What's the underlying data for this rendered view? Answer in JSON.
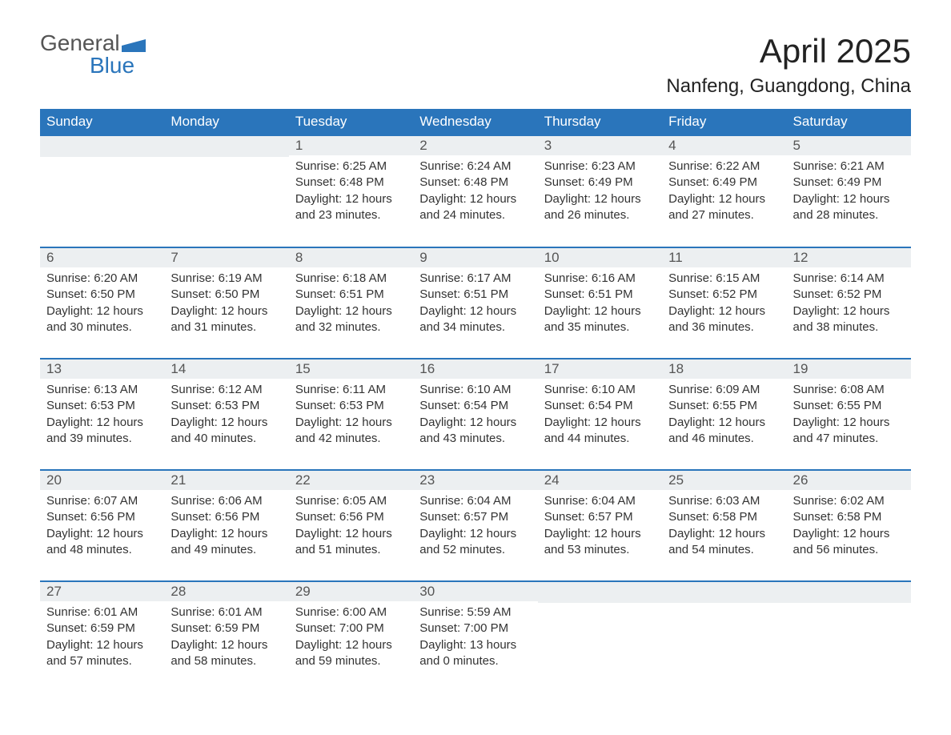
{
  "logo": {
    "word1": "General",
    "word2": "Blue"
  },
  "title": "April 2025",
  "location": "Nanfeng, Guangdong, China",
  "colors": {
    "accent": "#2a75bb",
    "row_bg": "#eceff1"
  },
  "weekdays": [
    "Sunday",
    "Monday",
    "Tuesday",
    "Wednesday",
    "Thursday",
    "Friday",
    "Saturday"
  ],
  "labels": {
    "sunrise": "Sunrise:",
    "sunset": "Sunset:",
    "daylight": "Daylight:"
  },
  "weeks": [
    [
      null,
      null,
      {
        "day": "1",
        "sunrise": "6:25 AM",
        "sunset": "6:48 PM",
        "daylight": "12 hours and 23 minutes."
      },
      {
        "day": "2",
        "sunrise": "6:24 AM",
        "sunset": "6:48 PM",
        "daylight": "12 hours and 24 minutes."
      },
      {
        "day": "3",
        "sunrise": "6:23 AM",
        "sunset": "6:49 PM",
        "daylight": "12 hours and 26 minutes."
      },
      {
        "day": "4",
        "sunrise": "6:22 AM",
        "sunset": "6:49 PM",
        "daylight": "12 hours and 27 minutes."
      },
      {
        "day": "5",
        "sunrise": "6:21 AM",
        "sunset": "6:49 PM",
        "daylight": "12 hours and 28 minutes."
      }
    ],
    [
      {
        "day": "6",
        "sunrise": "6:20 AM",
        "sunset": "6:50 PM",
        "daylight": "12 hours and 30 minutes."
      },
      {
        "day": "7",
        "sunrise": "6:19 AM",
        "sunset": "6:50 PM",
        "daylight": "12 hours and 31 minutes."
      },
      {
        "day": "8",
        "sunrise": "6:18 AM",
        "sunset": "6:51 PM",
        "daylight": "12 hours and 32 minutes."
      },
      {
        "day": "9",
        "sunrise": "6:17 AM",
        "sunset": "6:51 PM",
        "daylight": "12 hours and 34 minutes."
      },
      {
        "day": "10",
        "sunrise": "6:16 AM",
        "sunset": "6:51 PM",
        "daylight": "12 hours and 35 minutes."
      },
      {
        "day": "11",
        "sunrise": "6:15 AM",
        "sunset": "6:52 PM",
        "daylight": "12 hours and 36 minutes."
      },
      {
        "day": "12",
        "sunrise": "6:14 AM",
        "sunset": "6:52 PM",
        "daylight": "12 hours and 38 minutes."
      }
    ],
    [
      {
        "day": "13",
        "sunrise": "6:13 AM",
        "sunset": "6:53 PM",
        "daylight": "12 hours and 39 minutes."
      },
      {
        "day": "14",
        "sunrise": "6:12 AM",
        "sunset": "6:53 PM",
        "daylight": "12 hours and 40 minutes."
      },
      {
        "day": "15",
        "sunrise": "6:11 AM",
        "sunset": "6:53 PM",
        "daylight": "12 hours and 42 minutes."
      },
      {
        "day": "16",
        "sunrise": "6:10 AM",
        "sunset": "6:54 PM",
        "daylight": "12 hours and 43 minutes."
      },
      {
        "day": "17",
        "sunrise": "6:10 AM",
        "sunset": "6:54 PM",
        "daylight": "12 hours and 44 minutes."
      },
      {
        "day": "18",
        "sunrise": "6:09 AM",
        "sunset": "6:55 PM",
        "daylight": "12 hours and 46 minutes."
      },
      {
        "day": "19",
        "sunrise": "6:08 AM",
        "sunset": "6:55 PM",
        "daylight": "12 hours and 47 minutes."
      }
    ],
    [
      {
        "day": "20",
        "sunrise": "6:07 AM",
        "sunset": "6:56 PM",
        "daylight": "12 hours and 48 minutes."
      },
      {
        "day": "21",
        "sunrise": "6:06 AM",
        "sunset": "6:56 PM",
        "daylight": "12 hours and 49 minutes."
      },
      {
        "day": "22",
        "sunrise": "6:05 AM",
        "sunset": "6:56 PM",
        "daylight": "12 hours and 51 minutes."
      },
      {
        "day": "23",
        "sunrise": "6:04 AM",
        "sunset": "6:57 PM",
        "daylight": "12 hours and 52 minutes."
      },
      {
        "day": "24",
        "sunrise": "6:04 AM",
        "sunset": "6:57 PM",
        "daylight": "12 hours and 53 minutes."
      },
      {
        "day": "25",
        "sunrise": "6:03 AM",
        "sunset": "6:58 PM",
        "daylight": "12 hours and 54 minutes."
      },
      {
        "day": "26",
        "sunrise": "6:02 AM",
        "sunset": "6:58 PM",
        "daylight": "12 hours and 56 minutes."
      }
    ],
    [
      {
        "day": "27",
        "sunrise": "6:01 AM",
        "sunset": "6:59 PM",
        "daylight": "12 hours and 57 minutes."
      },
      {
        "day": "28",
        "sunrise": "6:01 AM",
        "sunset": "6:59 PM",
        "daylight": "12 hours and 58 minutes."
      },
      {
        "day": "29",
        "sunrise": "6:00 AM",
        "sunset": "7:00 PM",
        "daylight": "12 hours and 59 minutes."
      },
      {
        "day": "30",
        "sunrise": "5:59 AM",
        "sunset": "7:00 PM",
        "daylight": "13 hours and 0 minutes."
      },
      null,
      null,
      null
    ]
  ]
}
